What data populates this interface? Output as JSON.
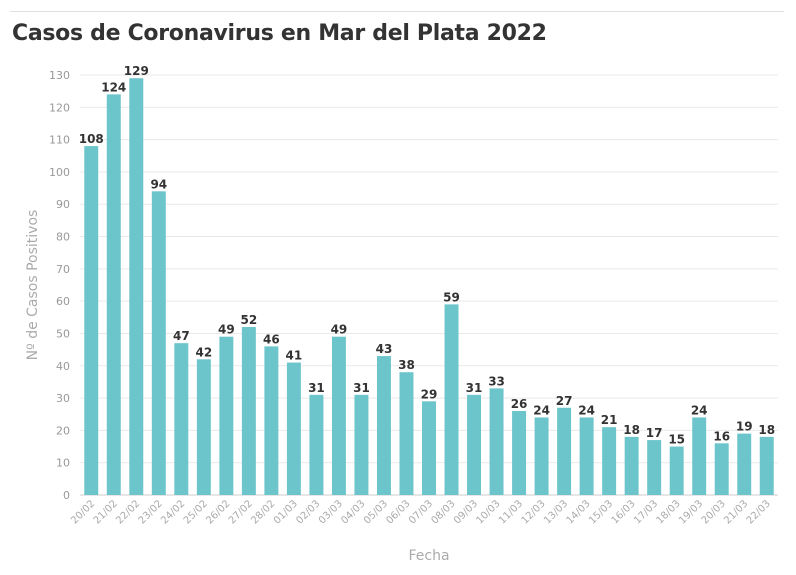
{
  "chart_data": {
    "type": "bar",
    "title": "Casos de Coronavirus en Mar del Plata 2022",
    "xlabel": "Fecha",
    "ylabel": "Nº de Casos Positivos",
    "ylim": [
      0,
      130
    ],
    "yticks": [
      0,
      10,
      20,
      30,
      40,
      50,
      60,
      70,
      80,
      90,
      100,
      110,
      120,
      130
    ],
    "grid": true,
    "bar_color": "#6cc5cb",
    "categories": [
      "20/02",
      "21/02",
      "22/02",
      "23/02",
      "24/02",
      "25/02",
      "26/02",
      "27/02",
      "28/02",
      "01/03",
      "02/03",
      "03/03",
      "04/03",
      "05/03",
      "06/03",
      "07/03",
      "08/03",
      "09/03",
      "10/03",
      "11/03",
      "12/03",
      "13/03",
      "14/03",
      "15/03",
      "16/03",
      "17/03",
      "18/03",
      "19/03",
      "20/03",
      "21/03",
      "22/03"
    ],
    "values": [
      108,
      124,
      129,
      94,
      47,
      42,
      49,
      52,
      46,
      41,
      31,
      49,
      31,
      43,
      38,
      29,
      59,
      31,
      33,
      26,
      24,
      27,
      24,
      21,
      18,
      17,
      15,
      24,
      16,
      19,
      18
    ]
  }
}
